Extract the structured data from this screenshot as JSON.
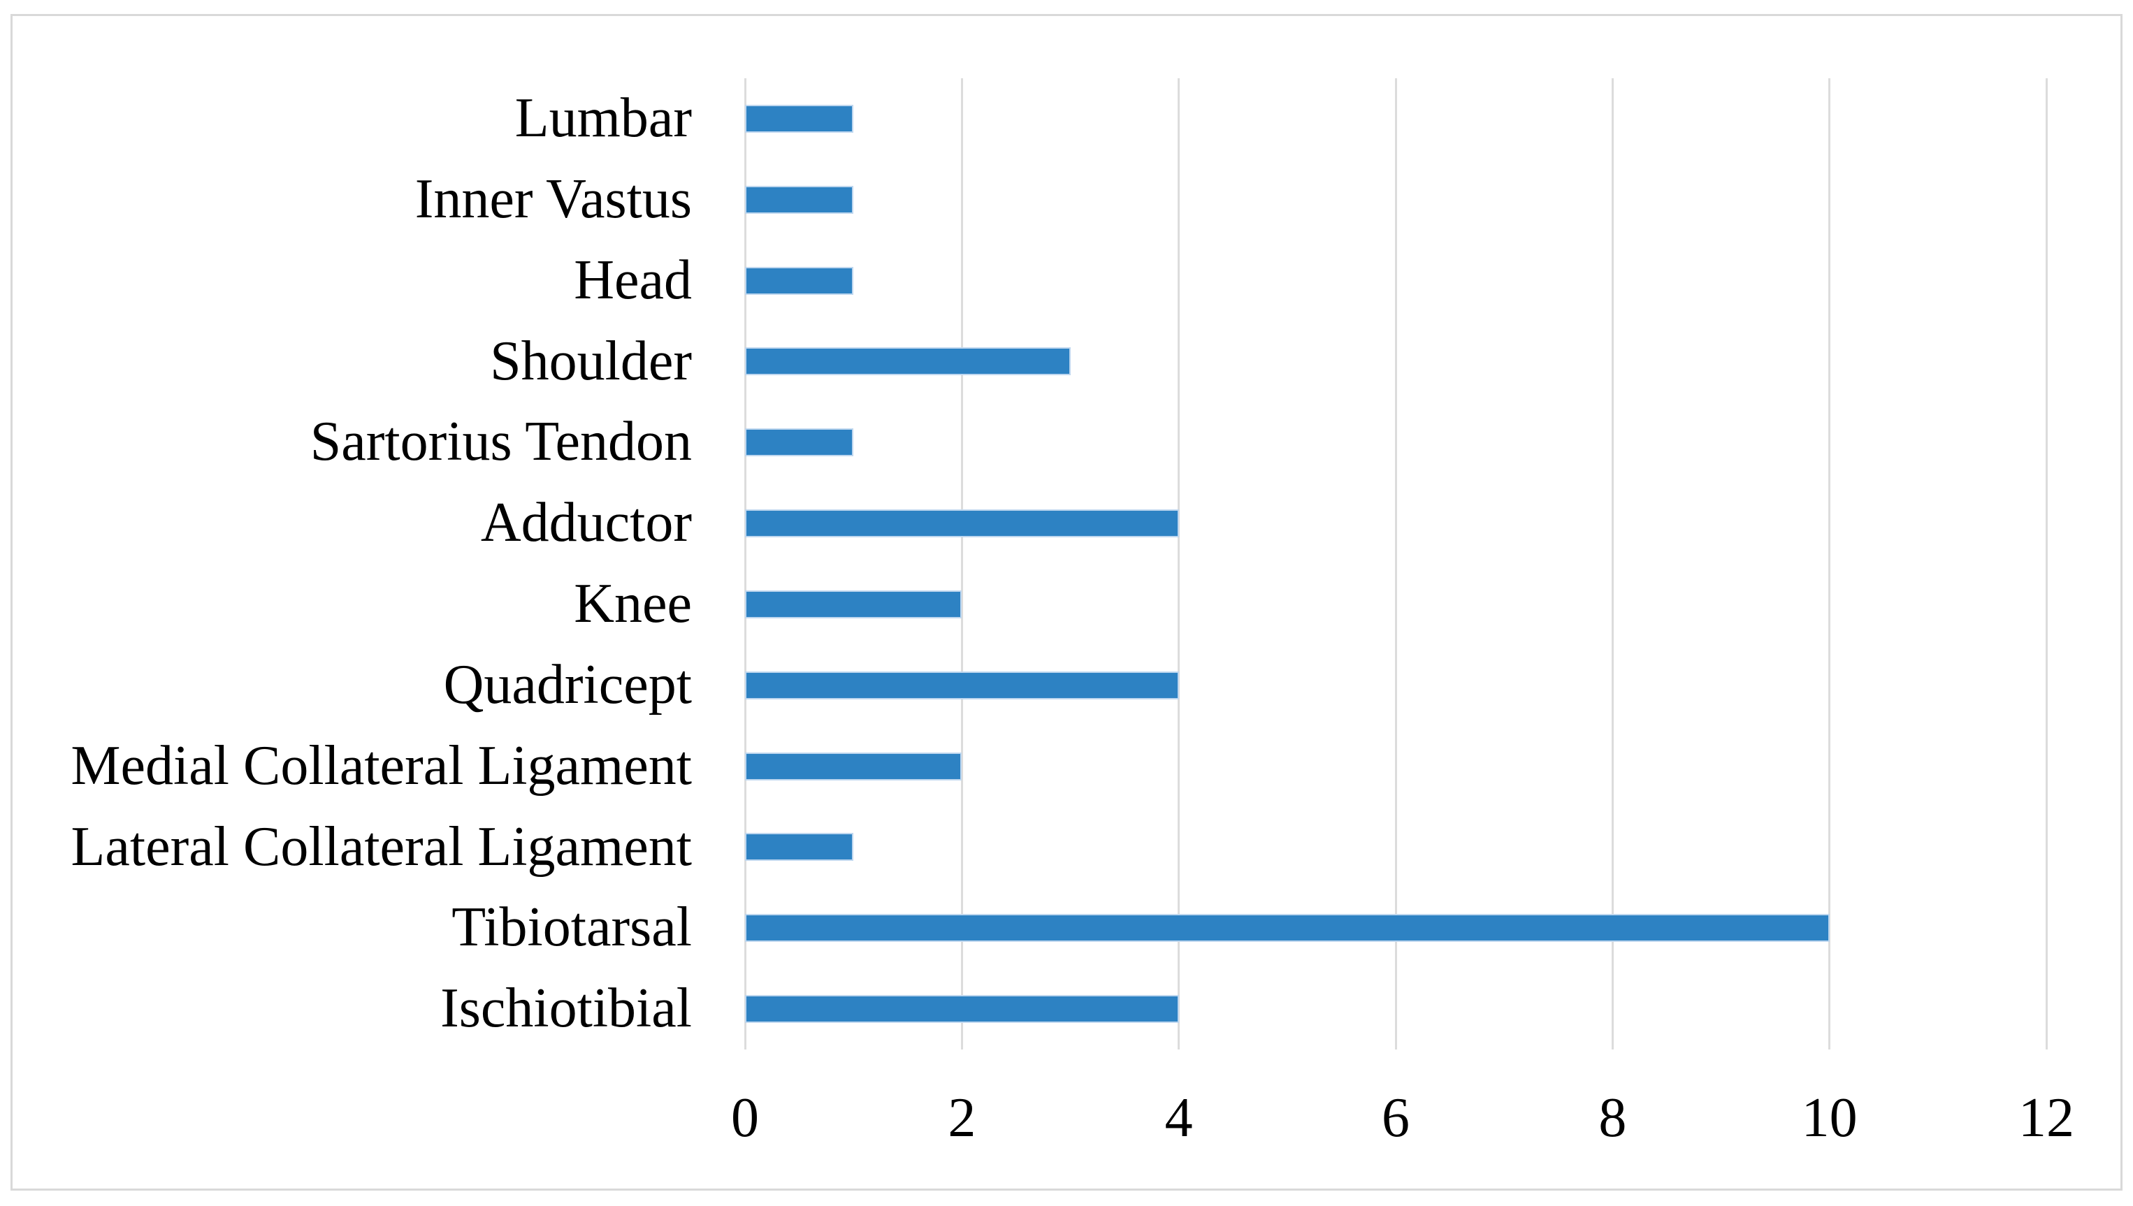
{
  "figure": {
    "background_color": "#FFFFFF",
    "border_color": "#D9D9D9"
  },
  "chart_data": {
    "type": "bar",
    "orientation": "horizontal",
    "title": "",
    "xlabel": "",
    "ylabel": "",
    "categories": [
      "Lumbar",
      "Inner Vastus",
      "Head",
      "Shoulder",
      "Sartorius Tendon",
      "Adductor",
      "Knee",
      "Quadricept",
      "Medial Collateral Ligament",
      "Lateral Collateral Ligament",
      "Tibiotarsal",
      "Ischiotibial"
    ],
    "values": [
      1,
      1,
      1,
      3,
      1,
      4,
      2,
      4,
      2,
      1,
      10,
      4
    ],
    "xlim": [
      0,
      12
    ],
    "xticks": [
      0,
      2,
      4,
      6,
      8,
      10,
      12
    ],
    "grid": true,
    "legend": false,
    "bar_color": "#2D82C3",
    "bar_border_color": "#BFD7EF",
    "gridline_color": "#DCDCDC",
    "tick_label_color": "#000000",
    "category_label_color": "#000000"
  }
}
